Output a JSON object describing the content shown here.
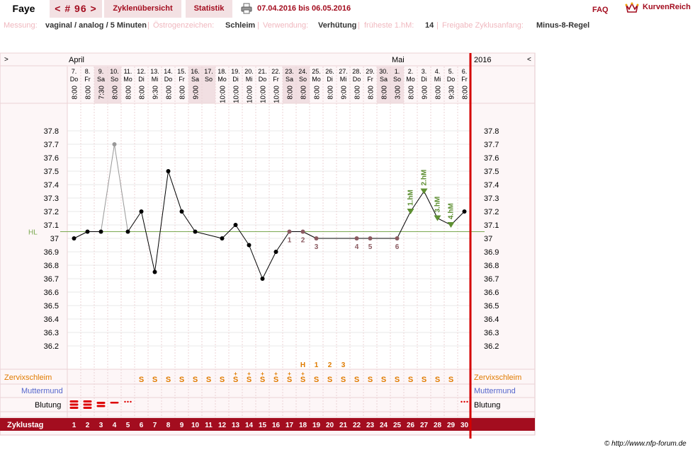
{
  "header": {
    "user_name": "Faye",
    "cycle_nav": "< # 96 >",
    "tab_overview": "Zyklenübersicht",
    "tab_stats": "Statistik",
    "date_range": "07.04.2016 bis 06.05.2016",
    "faq": "FAQ",
    "brand": "KurvenReich"
  },
  "info": {
    "measurement_label": "Messung:",
    "measurement_value": "vaginal / analog / 5 Minuten",
    "estrogen_label": "Östrogenzeichen:",
    "estrogen_value": "Schleim",
    "usage_label": "Verwendung:",
    "usage_value": "Verhütung",
    "earliest_label": "früheste 1.hM:",
    "earliest_value": "14",
    "release_label": "Freigabe Zyklusanfang:",
    "release_value": "Minus-8-Regel",
    "separator": "|"
  },
  "chart_data": {
    "type": "line",
    "nav_left": ">",
    "nav_right": "<",
    "year_label": "2016",
    "month_labels": [
      {
        "label": "April",
        "day_index": 0
      },
      {
        "label": "Mai",
        "day_index": 24
      }
    ],
    "days": [
      {
        "date": "7.",
        "wd": "Do",
        "time": "8:00"
      },
      {
        "date": "8.",
        "wd": "Fr",
        "time": "8:00"
      },
      {
        "date": "9.",
        "wd": "Sa",
        "time": "7:30"
      },
      {
        "date": "10.",
        "wd": "So",
        "time": "8:00"
      },
      {
        "date": "11.",
        "wd": "Mo",
        "time": "8:00"
      },
      {
        "date": "12.",
        "wd": "Di",
        "time": "8:00"
      },
      {
        "date": "13.",
        "wd": "Mi",
        "time": "9:30"
      },
      {
        "date": "14.",
        "wd": "Do",
        "time": "8:00"
      },
      {
        "date": "15.",
        "wd": "Fr",
        "time": "8:00"
      },
      {
        "date": "16.",
        "wd": "Sa",
        "time": "9:00"
      },
      {
        "date": "17.",
        "wd": "So",
        "time": ""
      },
      {
        "date": "18.",
        "wd": "Mo",
        "time": "10:00"
      },
      {
        "date": "19.",
        "wd": "Di",
        "time": "10:00"
      },
      {
        "date": "20.",
        "wd": "Mi",
        "time": "10:00"
      },
      {
        "date": "21.",
        "wd": "Do",
        "time": "10:00"
      },
      {
        "date": "22.",
        "wd": "Fr",
        "time": "10:00"
      },
      {
        "date": "23.",
        "wd": "Sa",
        "time": "8:00"
      },
      {
        "date": "24.",
        "wd": "So",
        "time": "8:00"
      },
      {
        "date": "25.",
        "wd": "Mo",
        "time": "8:00"
      },
      {
        "date": "26.",
        "wd": "Di",
        "time": "8:00"
      },
      {
        "date": "27.",
        "wd": "Mi",
        "time": "9:00"
      },
      {
        "date": "28.",
        "wd": "Do",
        "time": "8:00"
      },
      {
        "date": "29.",
        "wd": "Fr",
        "time": "8:00"
      },
      {
        "date": "30.",
        "wd": "Sa",
        "time": "8:00"
      },
      {
        "date": "1.",
        "wd": "So",
        "time": "3:00"
      },
      {
        "date": "2.",
        "wd": "Mo",
        "time": "8:00"
      },
      {
        "date": "3.",
        "wd": "Di",
        "time": "9:00"
      },
      {
        "date": "4.",
        "wd": "Mi",
        "time": "8:00"
      },
      {
        "date": "5.",
        "wd": "Do",
        "time": "9:30"
      },
      {
        "date": "6.",
        "wd": "Fr",
        "time": "8:00"
      }
    ],
    "weekend_days": [
      2,
      3,
      9,
      10,
      16,
      17,
      23,
      24
    ],
    "y_ticks": [
      "37.8",
      "37.7",
      "37.6",
      "37.5",
      "37.4",
      "37.3",
      "37.2",
      "37.1",
      "37",
      "36.9",
      "36.8",
      "36.7",
      "36.6",
      "36.5",
      "36.4",
      "36.3",
      "36.2"
    ],
    "ylim": [
      36.2,
      37.8
    ],
    "temperatures": [
      37.0,
      37.05,
      37.05,
      37.7,
      37.05,
      37.2,
      36.75,
      37.5,
      37.2,
      37.05,
      null,
      37.0,
      37.1,
      36.95,
      36.7,
      36.9,
      37.05,
      37.05,
      37.0,
      null,
      null,
      37.0,
      37.0,
      null,
      37.0,
      37.2,
      37.35,
      37.15,
      37.1,
      37.2
    ],
    "excluded_days": [
      3
    ],
    "low_days": [
      {
        "day": 16,
        "label": "1"
      },
      {
        "day": 17,
        "label": "2"
      },
      {
        "day": 18,
        "label": "3"
      },
      {
        "day": 21,
        "label": "4"
      },
      {
        "day": 22,
        "label": "5"
      },
      {
        "day": 24,
        "label": "6"
      }
    ],
    "high_days": [
      {
        "day": 25,
        "label": "1.hM"
      },
      {
        "day": 26,
        "label": "2.hM"
      },
      {
        "day": 27,
        "label": "3.hM"
      },
      {
        "day": 28,
        "label": "4.hM"
      }
    ],
    "coverline": {
      "label": "HL",
      "value": 37.05
    },
    "peak_markers": [
      {
        "day": 17,
        "label": "H"
      },
      {
        "day": 18,
        "label": "1"
      },
      {
        "day": 19,
        "label": "2"
      },
      {
        "day": 20,
        "label": "3"
      }
    ],
    "mucus_label": "Zervixschleim",
    "mucus": [
      "",
      "",
      "",
      "",
      "",
      "S",
      "S",
      "S",
      "S",
      "S",
      "S",
      "S",
      "S+",
      "S+",
      "S+",
      "S+",
      "S+",
      "S+",
      "S",
      "S",
      "S",
      "S",
      "S",
      "S",
      "S",
      "S",
      "S",
      "S",
      "S",
      ""
    ],
    "cervix_label": "Muttermund",
    "bleeding_label": "Blutung",
    "bleeding": [
      "heavy",
      "heavy",
      "medium",
      "light",
      "spotting",
      "",
      "",
      "",
      "",
      "",
      "",
      "",
      "",
      "",
      "",
      "",
      "",
      "",
      "",
      "",
      "",
      "",
      "",
      "",
      "",
      "",
      "",
      "",
      "",
      "spotting"
    ],
    "cycle_day_label": "Zyklustag",
    "cycle_days": [
      "1",
      "2",
      "3",
      "4",
      "5",
      "6",
      "7",
      "8",
      "9",
      "10",
      "11",
      "12",
      "13",
      "14",
      "15",
      "16",
      "17",
      "18",
      "19",
      "20",
      "21",
      "22",
      "23",
      "24",
      "25",
      "26",
      "27",
      "28",
      "29",
      "30"
    ]
  },
  "colors": {
    "accent": "#a30d1f",
    "pink": "#f3e1e3",
    "coverline": "#7aa84f",
    "high": "#5e8f32",
    "low": "#8a5a60",
    "mucus": "#e07b00",
    "cervix": "#5566cc",
    "bleed": "#dd0000"
  },
  "footer": {
    "copyright": "© http://www.nfp-forum.de"
  }
}
